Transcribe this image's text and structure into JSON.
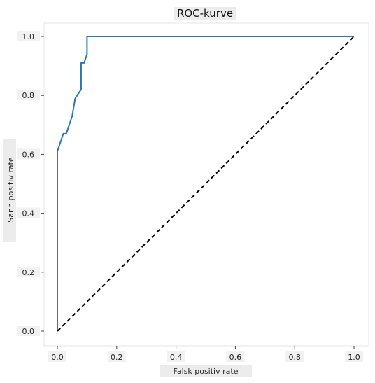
{
  "chart_data": {
    "type": "line",
    "title": "ROC-kurve",
    "xlabel": "Falsk positiv rate",
    "ylabel": "Sann positiv rate",
    "xlim": [
      0.0,
      1.0
    ],
    "ylim": [
      0.0,
      1.0
    ],
    "xticks": [
      "0.0",
      "0.2",
      "0.4",
      "0.6",
      "0.8",
      "1.0"
    ],
    "yticks": [
      "0.0",
      "0.2",
      "0.4",
      "0.6",
      "0.8",
      "1.0"
    ],
    "grid": false,
    "series": [
      {
        "style": "solid",
        "color": "#2c77b0",
        "x": [
          0.0,
          0.0,
          0.0,
          0.01,
          0.02,
          0.03,
          0.05,
          0.06,
          0.08,
          0.08,
          0.09,
          0.09,
          0.09,
          0.1,
          0.1,
          1.0
        ],
        "y": [
          0.0,
          0.61,
          0.61,
          0.64,
          0.67,
          0.67,
          0.73,
          0.79,
          0.82,
          0.91,
          0.91,
          0.91,
          0.91,
          0.94,
          1.0,
          1.0
        ]
      },
      {
        "style": "dashed",
        "color": "#000000",
        "x": [
          0.0,
          1.0
        ],
        "y": [
          0.0,
          1.0
        ]
      }
    ]
  }
}
